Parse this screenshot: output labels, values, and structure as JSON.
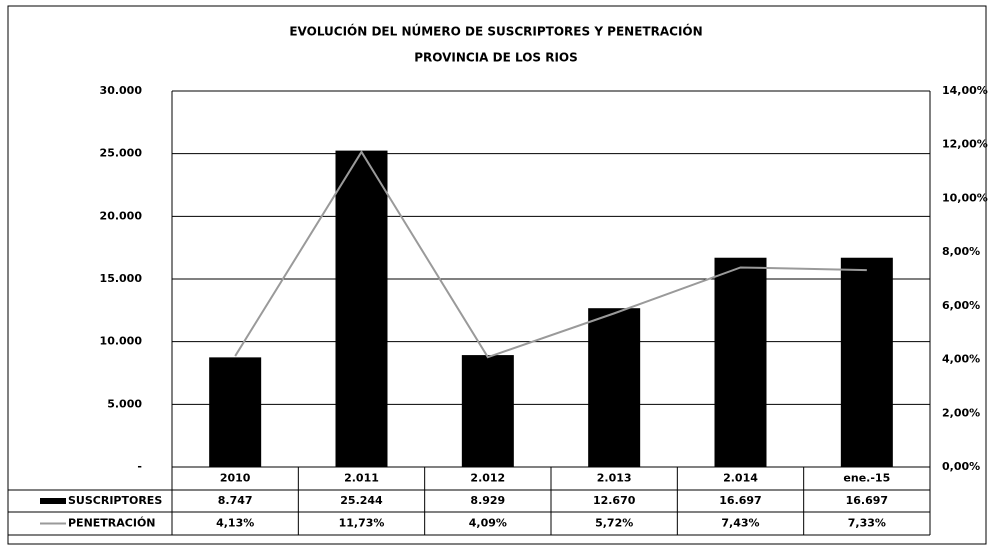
{
  "chart_data": {
    "type": "bar",
    "title": "EVOLUCIÓN DEL NÚMERO DE SUSCRIPTORES Y PENETRACIÓN",
    "subtitle": "PROVINCIA DE LOS RIOS",
    "categories": [
      "2010",
      "2.011",
      "2.012",
      "2.013",
      "2.014",
      "ene.-15"
    ],
    "series": [
      {
        "name": "SUSCRIPTORES",
        "color": "#000000",
        "type": "bar",
        "values": [
          8747,
          25244,
          8929,
          12670,
          16697,
          16697
        ],
        "value_labels": [
          "8.747",
          "25.244",
          "8.929",
          "12.670",
          "16.697",
          "16.697"
        ]
      },
      {
        "name": "PENETRACIÓN",
        "color": "#9a9a9a",
        "type": "line",
        "axis": "y2",
        "values": [
          4.13,
          11.73,
          4.09,
          5.72,
          7.43,
          7.33
        ],
        "value_labels": [
          "4,13%",
          "11,73%",
          "4,09%",
          "5,72%",
          "7,43%",
          "7,33%"
        ]
      }
    ],
    "ylim": [
      0,
      30000
    ],
    "yticks": [
      {
        "value": 0,
        "label": "-"
      },
      {
        "value": 5000,
        "label": "5.000"
      },
      {
        "value": 10000,
        "label": "10.000"
      },
      {
        "value": 15000,
        "label": "15.000"
      },
      {
        "value": 20000,
        "label": "20.000"
      },
      {
        "value": 25000,
        "label": "25.000"
      },
      {
        "value": 30000,
        "label": "30.000"
      }
    ],
    "y2lim": [
      0,
      14
    ],
    "y2ticks": [
      {
        "value": 0,
        "label": "0,00%"
      },
      {
        "value": 2,
        "label": "2,00%"
      },
      {
        "value": 4,
        "label": "4,00%"
      },
      {
        "value": 6,
        "label": "6,00%"
      },
      {
        "value": 8,
        "label": "8,00%"
      },
      {
        "value": 10,
        "label": "10,00%"
      },
      {
        "value": 12,
        "label": "12,00%"
      },
      {
        "value": 14,
        "label": "14,00%"
      }
    ],
    "grid": true
  }
}
